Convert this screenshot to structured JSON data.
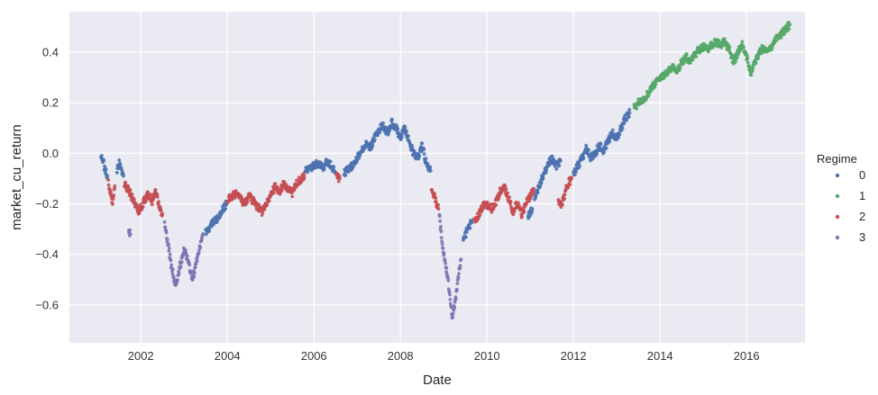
{
  "chart_data": {
    "type": "scatter",
    "title": "",
    "xlabel": "Date",
    "ylabel": "market_cu_return",
    "xlim": [
      2000.35,
      2017.35
    ],
    "ylim": [
      -0.75,
      0.56
    ],
    "x_ticks": [
      2002,
      2004,
      2006,
      2008,
      2010,
      2012,
      2014,
      2016
    ],
    "x_tick_labels": [
      "2002",
      "2004",
      "2006",
      "2008",
      "2010",
      "2012",
      "2014",
      "2016"
    ],
    "y_ticks": [
      -0.6,
      -0.4,
      -0.2,
      0.0,
      0.2,
      0.4
    ],
    "y_tick_labels": [
      "−0.6",
      "−0.4",
      "−0.2",
      "0.0",
      "0.2",
      "0.4"
    ],
    "grid": true,
    "background": "#eaeaf2",
    "legend": {
      "title": "Regime",
      "position": "right",
      "entries": [
        "0",
        "1",
        "2",
        "3"
      ]
    },
    "series": [
      {
        "name": "0",
        "color": "#4c72b0",
        "segments": [
          [
            [
              2001.08,
              -0.01
            ],
            [
              2001.13,
              -0.03
            ],
            [
              2001.18,
              -0.07
            ],
            [
              2001.23,
              -0.09
            ]
          ],
          [
            [
              2001.45,
              -0.07
            ],
            [
              2001.5,
              -0.04
            ],
            [
              2001.55,
              -0.06
            ],
            [
              2001.6,
              -0.09
            ]
          ],
          [
            [
              2003.5,
              -0.31
            ],
            [
              2003.6,
              -0.29
            ],
            [
              2003.7,
              -0.27
            ],
            [
              2003.8,
              -0.25
            ],
            [
              2003.9,
              -0.22
            ],
            [
              2003.98,
              -0.2
            ]
          ],
          [
            [
              2005.8,
              -0.07
            ],
            [
              2005.9,
              -0.06
            ],
            [
              2006.0,
              -0.05
            ],
            [
              2006.1,
              -0.04
            ],
            [
              2006.2,
              -0.06
            ],
            [
              2006.3,
              -0.03
            ],
            [
              2006.4,
              -0.05
            ],
            [
              2006.5,
              -0.08
            ]
          ],
          [
            [
              2006.7,
              -0.08
            ],
            [
              2006.8,
              -0.06
            ],
            [
              2006.9,
              -0.05
            ],
            [
              2007.0,
              -0.02
            ],
            [
              2007.1,
              0.01
            ],
            [
              2007.2,
              0.04
            ],
            [
              2007.3,
              0.02
            ],
            [
              2007.4,
              0.06
            ],
            [
              2007.5,
              0.09
            ],
            [
              2007.6,
              0.11
            ],
            [
              2007.7,
              0.08
            ],
            [
              2007.8,
              0.12
            ],
            [
              2007.9,
              0.1
            ],
            [
              2008.0,
              0.06
            ],
            [
              2008.1,
              0.1
            ],
            [
              2008.2,
              0.05
            ],
            [
              2008.3,
              0.0
            ],
            [
              2008.4,
              -0.02
            ],
            [
              2008.5,
              0.03
            ],
            [
              2008.6,
              -0.04
            ],
            [
              2008.7,
              -0.07
            ]
          ],
          [
            [
              2009.45,
              -0.35
            ],
            [
              2009.55,
              -0.3
            ],
            [
              2009.65,
              -0.27
            ]
          ],
          [
            [
              2010.95,
              -0.25
            ],
            [
              2011.05,
              -0.22
            ]
          ],
          [
            [
              2011.1,
              -0.18
            ],
            [
              2011.2,
              -0.13
            ],
            [
              2011.3,
              -0.09
            ],
            [
              2011.4,
              -0.05
            ],
            [
              2011.5,
              -0.02
            ],
            [
              2011.6,
              -0.05
            ],
            [
              2011.7,
              -0.03
            ]
          ],
          [
            [
              2012.0,
              -0.08
            ],
            [
              2012.1,
              -0.05
            ],
            [
              2012.2,
              -0.02
            ],
            [
              2012.3,
              0.02
            ],
            [
              2012.4,
              -0.02
            ],
            [
              2012.5,
              0.0
            ],
            [
              2012.6,
              0.03
            ],
            [
              2012.7,
              0.01
            ],
            [
              2012.8,
              0.05
            ],
            [
              2012.9,
              0.08
            ],
            [
              2013.0,
              0.06
            ],
            [
              2013.1,
              0.1
            ],
            [
              2013.2,
              0.14
            ],
            [
              2013.3,
              0.16
            ]
          ]
        ]
      },
      {
        "name": "1",
        "color": "#55a868",
        "segments": [
          [
            [
              2013.4,
              0.18
            ],
            [
              2013.5,
              0.2
            ],
            [
              2013.6,
              0.21
            ],
            [
              2013.7,
              0.23
            ],
            [
              2013.8,
              0.26
            ],
            [
              2013.9,
              0.28
            ],
            [
              2014.0,
              0.29
            ],
            [
              2014.1,
              0.31
            ],
            [
              2014.2,
              0.33
            ],
            [
              2014.3,
              0.34
            ],
            [
              2014.4,
              0.33
            ],
            [
              2014.5,
              0.36
            ],
            [
              2014.6,
              0.38
            ],
            [
              2014.7,
              0.36
            ],
            [
              2014.8,
              0.39
            ],
            [
              2014.9,
              0.41
            ],
            [
              2015.0,
              0.42
            ],
            [
              2015.1,
              0.41
            ],
            [
              2015.2,
              0.43
            ],
            [
              2015.3,
              0.44
            ],
            [
              2015.4,
              0.43
            ],
            [
              2015.5,
              0.44
            ],
            [
              2015.6,
              0.41
            ],
            [
              2015.7,
              0.36
            ],
            [
              2015.8,
              0.4
            ],
            [
              2015.9,
              0.43
            ],
            [
              2016.0,
              0.38
            ],
            [
              2016.1,
              0.32
            ],
            [
              2016.2,
              0.36
            ],
            [
              2016.3,
              0.4
            ],
            [
              2016.4,
              0.42
            ],
            [
              2016.5,
              0.4
            ],
            [
              2016.6,
              0.43
            ],
            [
              2016.7,
              0.46
            ],
            [
              2016.8,
              0.47
            ],
            [
              2016.9,
              0.49
            ],
            [
              2017.0,
              0.51
            ]
          ]
        ]
      },
      {
        "name": "2",
        "color": "#c44e52",
        "segments": [
          [
            [
              2001.25,
              -0.12
            ],
            [
              2001.3,
              -0.16
            ],
            [
              2001.35,
              -0.19
            ],
            [
              2001.4,
              -0.13
            ]
          ],
          [
            [
              2001.62,
              -0.12
            ],
            [
              2001.7,
              -0.14
            ],
            [
              2001.78,
              -0.17
            ],
            [
              2001.86,
              -0.2
            ],
            [
              2001.94,
              -0.23
            ],
            [
              2002.02,
              -0.21
            ],
            [
              2002.1,
              -0.18
            ],
            [
              2002.18,
              -0.16
            ],
            [
              2002.26,
              -0.19
            ],
            [
              2002.34,
              -0.15
            ],
            [
              2002.42,
              -0.2
            ],
            [
              2002.5,
              -0.24
            ]
          ],
          [
            [
              2004.0,
              -0.19
            ],
            [
              2004.1,
              -0.17
            ],
            [
              2004.2,
              -0.16
            ],
            [
              2004.3,
              -0.18
            ],
            [
              2004.4,
              -0.2
            ],
            [
              2004.5,
              -0.17
            ],
            [
              2004.6,
              -0.19
            ],
            [
              2004.7,
              -0.21
            ],
            [
              2004.8,
              -0.23
            ],
            [
              2004.9,
              -0.2
            ],
            [
              2005.0,
              -0.17
            ],
            [
              2005.1,
              -0.13
            ],
            [
              2005.2,
              -0.16
            ],
            [
              2005.3,
              -0.12
            ],
            [
              2005.4,
              -0.14
            ],
            [
              2005.5,
              -0.16
            ],
            [
              2005.6,
              -0.12
            ],
            [
              2005.7,
              -0.1
            ],
            [
              2005.78,
              -0.09
            ]
          ],
          [
            [
              2006.52,
              -0.09
            ],
            [
              2006.6,
              -0.1
            ]
          ],
          [
            [
              2008.72,
              -0.13
            ],
            [
              2008.8,
              -0.18
            ],
            [
              2008.88,
              -0.22
            ]
          ],
          [
            [
              2009.7,
              -0.26
            ],
            [
              2009.8,
              -0.25
            ],
            [
              2009.9,
              -0.21
            ],
            [
              2010.0,
              -0.2
            ],
            [
              2010.1,
              -0.22
            ],
            [
              2010.2,
              -0.2
            ],
            [
              2010.3,
              -0.15
            ],
            [
              2010.4,
              -0.13
            ],
            [
              2010.5,
              -0.18
            ],
            [
              2010.6,
              -0.23
            ],
            [
              2010.7,
              -0.2
            ],
            [
              2010.8,
              -0.24
            ],
            [
              2010.9,
              -0.2
            ],
            [
              2011.0,
              -0.17
            ],
            [
              2011.08,
              -0.14
            ]
          ],
          [
            [
              2011.65,
              -0.18
            ],
            [
              2011.72,
              -0.21
            ],
            [
              2011.8,
              -0.16
            ],
            [
              2011.88,
              -0.12
            ],
            [
              2011.96,
              -0.1
            ]
          ]
        ]
      },
      {
        "name": "3",
        "color": "#8172b2",
        "segments": [
          [
            [
              2001.72,
              -0.3
            ],
            [
              2001.76,
              -0.32
            ]
          ],
          [
            [
              2002.55,
              -0.28
            ],
            [
              2002.6,
              -0.33
            ],
            [
              2002.65,
              -0.38
            ],
            [
              2002.7,
              -0.44
            ],
            [
              2002.75,
              -0.48
            ],
            [
              2002.8,
              -0.52
            ],
            [
              2002.85,
              -0.5
            ],
            [
              2002.9,
              -0.45
            ],
            [
              2002.95,
              -0.42
            ],
            [
              2003.0,
              -0.38
            ],
            [
              2003.05,
              -0.4
            ],
            [
              2003.1,
              -0.43
            ],
            [
              2003.15,
              -0.47
            ],
            [
              2003.2,
              -0.5
            ],
            [
              2003.25,
              -0.46
            ],
            [
              2003.3,
              -0.42
            ],
            [
              2003.35,
              -0.38
            ],
            [
              2003.4,
              -0.35
            ],
            [
              2003.45,
              -0.32
            ]
          ],
          [
            [
              2008.9,
              -0.25
            ],
            [
              2008.95,
              -0.33
            ],
            [
              2009.0,
              -0.4
            ],
            [
              2009.05,
              -0.45
            ],
            [
              2009.1,
              -0.5
            ],
            [
              2009.15,
              -0.58
            ],
            [
              2009.2,
              -0.65
            ],
            [
              2009.25,
              -0.6
            ],
            [
              2009.3,
              -0.55
            ],
            [
              2009.35,
              -0.47
            ],
            [
              2009.4,
              -0.42
            ]
          ]
        ]
      }
    ]
  }
}
